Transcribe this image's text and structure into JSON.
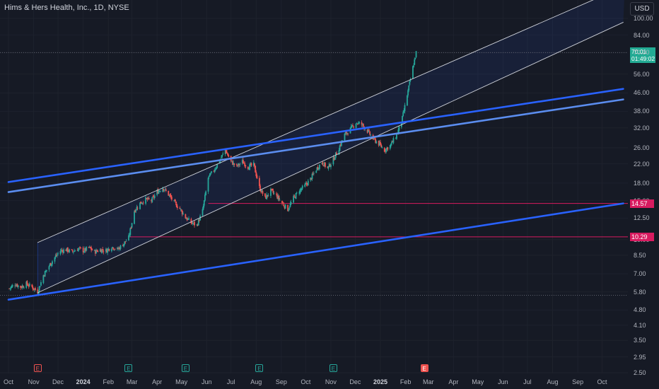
{
  "chart": {
    "title": "Hims & Hers Health, Inc., 1D, NYSE",
    "currency_button": "USD",
    "current_price": "70.01",
    "countdown": "01:49:02",
    "levels": [
      {
        "label": "14.57",
        "value": 14.57,
        "color": "#d81b60"
      },
      {
        "label": "10.29",
        "value": 10.29,
        "color": "#d81b60"
      }
    ],
    "events": [
      {
        "date": "2023-11-06",
        "label": "E",
        "kind": "miss"
      },
      {
        "date": "2024-02-26",
        "label": "E",
        "kind": "past"
      },
      {
        "date": "2024-05-06",
        "label": "E",
        "kind": "past"
      },
      {
        "date": "2024-08-05",
        "label": "E",
        "kind": "past"
      },
      {
        "date": "2024-11-04",
        "label": "E",
        "kind": "past"
      },
      {
        "date": "2025-02-24",
        "label": "E",
        "kind": "next"
      }
    ],
    "colors": {
      "background": "#161a25",
      "up": "#26a69a",
      "down": "#ef5350",
      "trendline": "#2962ff",
      "trendline_light": "#5b8def",
      "channel": "#d1d4dc",
      "level": "#d81b60",
      "current_price": "#22ab94"
    }
  },
  "chart_data": {
    "type": "candlestick",
    "title": "Hims & Hers Health, Inc., 1D, NYSE",
    "y_scale": "log",
    "ylim": [
      2.5,
      100.0
    ],
    "xlim": [
      "2023-10-01",
      "2025-10-31"
    ],
    "y_ticks": [
      "100.00",
      "84.00",
      "70.00",
      "56.00",
      "46.00",
      "38.00",
      "32.00",
      "26.00",
      "22.00",
      "18.00",
      "15.00",
      "12.50",
      "10.00",
      "8.50",
      "7.00",
      "5.80",
      "4.80",
      "4.10",
      "3.50",
      "2.95",
      "2.50"
    ],
    "x_ticks": [
      {
        "date": "2023-10-01",
        "label": "Oct"
      },
      {
        "date": "2023-11-01",
        "label": "Nov"
      },
      {
        "date": "2023-12-01",
        "label": "Dec"
      },
      {
        "date": "2024-01-01",
        "label": "2024"
      },
      {
        "date": "2024-02-01",
        "label": "Feb"
      },
      {
        "date": "2024-03-01",
        "label": "Mar"
      },
      {
        "date": "2024-04-01",
        "label": "Apr"
      },
      {
        "date": "2024-05-01",
        "label": "May"
      },
      {
        "date": "2024-06-01",
        "label": "Jun"
      },
      {
        "date": "2024-07-01",
        "label": "Jul"
      },
      {
        "date": "2024-08-01",
        "label": "Aug"
      },
      {
        "date": "2024-09-01",
        "label": "Sep"
      },
      {
        "date": "2024-10-01",
        "label": "Oct"
      },
      {
        "date": "2024-11-01",
        "label": "Nov"
      },
      {
        "date": "2024-12-01",
        "label": "Dec"
      },
      {
        "date": "2025-01-01",
        "label": "2025"
      },
      {
        "date": "2025-02-01",
        "label": "Feb"
      },
      {
        "date": "2025-03-01",
        "label": "Mar"
      },
      {
        "date": "2025-04-01",
        "label": "Apr"
      },
      {
        "date": "2025-05-01",
        "label": "May"
      },
      {
        "date": "2025-06-01",
        "label": "Jun"
      },
      {
        "date": "2025-07-01",
        "label": "Jul"
      },
      {
        "date": "2025-08-01",
        "label": "Aug"
      },
      {
        "date": "2025-09-01",
        "label": "Sep"
      },
      {
        "date": "2025-10-01",
        "label": "Oct"
      }
    ],
    "price_path": [
      [
        "2023-10-02",
        6.0
      ],
      [
        "2023-10-09",
        6.3
      ],
      [
        "2023-10-16",
        6.1
      ],
      [
        "2023-10-23",
        6.3
      ],
      [
        "2023-10-30",
        6.1
      ],
      [
        "2023-11-06",
        5.8
      ],
      [
        "2023-11-13",
        6.9
      ],
      [
        "2023-11-20",
        7.6
      ],
      [
        "2023-11-27",
        8.3
      ],
      [
        "2023-12-04",
        8.9
      ],
      [
        "2023-12-11",
        9.0
      ],
      [
        "2023-12-18",
        8.8
      ],
      [
        "2023-12-26",
        9.1
      ],
      [
        "2024-01-02",
        8.9
      ],
      [
        "2024-01-08",
        9.2
      ],
      [
        "2024-01-15",
        8.8
      ],
      [
        "2024-01-22",
        9.0
      ],
      [
        "2024-01-29",
        8.9
      ],
      [
        "2024-02-05",
        9.3
      ],
      [
        "2024-02-12",
        9.0
      ],
      [
        "2024-02-20",
        9.6
      ],
      [
        "2024-02-26",
        10.2
      ],
      [
        "2024-03-04",
        13.5
      ],
      [
        "2024-03-11",
        14.6
      ],
      [
        "2024-03-18",
        15.2
      ],
      [
        "2024-03-25",
        15.0
      ],
      [
        "2024-04-01",
        16.4
      ],
      [
        "2024-04-08",
        17.2
      ],
      [
        "2024-04-15",
        16.0
      ],
      [
        "2024-04-22",
        14.7
      ],
      [
        "2024-04-29",
        13.8
      ],
      [
        "2024-05-06",
        12.6
      ],
      [
        "2024-05-13",
        11.9
      ],
      [
        "2024-05-20",
        11.6
      ],
      [
        "2024-05-27",
        13.5
      ],
      [
        "2024-06-03",
        19.0
      ],
      [
        "2024-06-10",
        20.6
      ],
      [
        "2024-06-17",
        22.8
      ],
      [
        "2024-06-24",
        25.4
      ],
      [
        "2024-07-01",
        22.5
      ],
      [
        "2024-07-08",
        21.4
      ],
      [
        "2024-07-15",
        22.5
      ],
      [
        "2024-07-22",
        21.3
      ],
      [
        "2024-07-29",
        21.8
      ],
      [
        "2024-08-05",
        17.2
      ],
      [
        "2024-08-12",
        15.4
      ],
      [
        "2024-08-19",
        16.6
      ],
      [
        "2024-08-26",
        15.8
      ],
      [
        "2024-09-02",
        14.6
      ],
      [
        "2024-09-09",
        13.7
      ],
      [
        "2024-09-16",
        15.4
      ],
      [
        "2024-09-23",
        16.6
      ],
      [
        "2024-09-30",
        17.5
      ],
      [
        "2024-10-07",
        18.8
      ],
      [
        "2024-10-14",
        20.8
      ],
      [
        "2024-10-21",
        22.4
      ],
      [
        "2024-10-28",
        21.0
      ],
      [
        "2024-11-04",
        23.0
      ],
      [
        "2024-11-11",
        26.0
      ],
      [
        "2024-11-18",
        29.8
      ],
      [
        "2024-11-25",
        31.5
      ],
      [
        "2024-12-02",
        33.8
      ],
      [
        "2024-12-09",
        33.2
      ],
      [
        "2024-12-16",
        31.0
      ],
      [
        "2024-12-23",
        28.6
      ],
      [
        "2024-12-30",
        27.1
      ],
      [
        "2025-01-06",
        25.4
      ],
      [
        "2025-01-13",
        26.6
      ],
      [
        "2025-01-20",
        29.2
      ],
      [
        "2025-01-27",
        34.0
      ],
      [
        "2025-02-03",
        45.0
      ],
      [
        "2025-02-10",
        60.0
      ],
      [
        "2025-02-14",
        70.01
      ]
    ],
    "lines": [
      {
        "name": "Channel upper",
        "from": [
          "2023-11-06",
          9.7
        ],
        "to": [
          "2025-10-29",
          140.0
        ],
        "color": "#d1d4dc"
      },
      {
        "name": "Channel lower",
        "from": [
          "2023-11-06",
          5.75
        ],
        "to": [
          "2025-10-27",
          96.0
        ],
        "color": "#d1d4dc"
      },
      {
        "name": "Trendline 1",
        "from": [
          "2023-10-01",
          18.2
        ],
        "to": [
          "2025-10-27",
          48.0
        ],
        "color": "#2962ff"
      },
      {
        "name": "Trendline 2",
        "from": [
          "2023-10-01",
          16.4
        ],
        "to": [
          "2025-10-27",
          43.0
        ],
        "color": "#5b8def"
      },
      {
        "name": "Trendline 3",
        "from": [
          "2023-10-01",
          5.35
        ],
        "to": [
          "2025-10-27",
          14.57
        ],
        "color": "#2962ff"
      }
    ],
    "horizontal_levels": [
      14.57,
      10.29
    ],
    "dotted_levels": [
      70.01,
      5.6
    ]
  }
}
